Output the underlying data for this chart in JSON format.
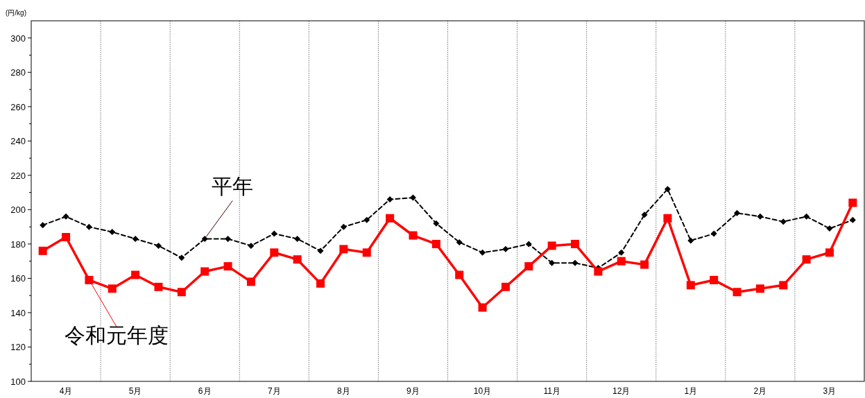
{
  "chart_data": {
    "type": "line",
    "ylabel": "(円/kg)",
    "categories": [
      null,
      "4月",
      null,
      null,
      "5月",
      null,
      null,
      "6月",
      null,
      null,
      "7月",
      null,
      null,
      "8月",
      null,
      null,
      "9月",
      null,
      null,
      "10月",
      null,
      null,
      "11月",
      null,
      null,
      "12月",
      null,
      null,
      "1月",
      null,
      null,
      "2月",
      null,
      null,
      "3月",
      null
    ],
    "ylim": [
      100,
      310
    ],
    "yticks": [
      100,
      {
        "value": 110,
        "label": null
      },
      120,
      {
        "value": 130,
        "label": null
      },
      140,
      {
        "value": 150,
        "label": null
      },
      160,
      {
        "value": 170,
        "label": null
      },
      180,
      {
        "value": 190,
        "label": null
      },
      200,
      {
        "value": 210,
        "label": null
      },
      220,
      {
        "value": 230,
        "label": null
      },
      240,
      {
        "value": 250,
        "label": null
      },
      260,
      {
        "value": 270,
        "label": null
      },
      280,
      {
        "value": 290,
        "label": null
      },
      300
    ],
    "grid": "x",
    "series": [
      {
        "name": "平年",
        "color": "#000000",
        "marker": "diamond",
        "line_style": "dashed",
        "values": [
          191,
          196,
          190,
          187,
          183,
          179,
          172,
          183,
          183,
          179,
          186,
          183,
          176,
          190,
          194,
          206,
          207,
          192,
          181,
          175,
          177,
          180,
          169,
          169,
          166,
          175,
          197,
          212,
          182,
          186,
          198,
          196,
          193,
          196,
          189,
          194
        ]
      },
      {
        "name": "令和元年度",
        "color": "#ff0000",
        "marker": "square",
        "line_style": "solid",
        "values": [
          176,
          184,
          159,
          154,
          162,
          155,
          152,
          164,
          167,
          158,
          175,
          171,
          157,
          177,
          175,
          195,
          185,
          180,
          162,
          143,
          155,
          167,
          179,
          180,
          164,
          170,
          168,
          195,
          156,
          159,
          152,
          154,
          156,
          171,
          175,
          204
        ]
      }
    ]
  }
}
